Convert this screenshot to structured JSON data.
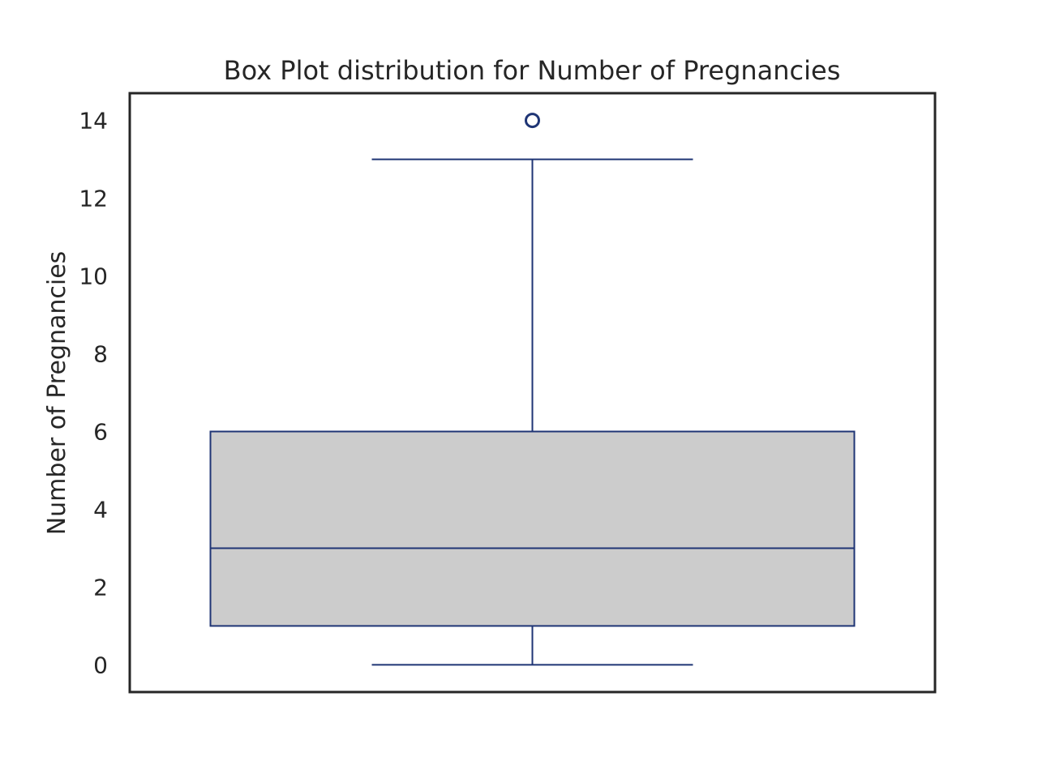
{
  "chart_data": {
    "type": "box",
    "title": "Box Plot distribution for Number of Pregnancies",
    "xlabel": "",
    "ylabel": "Number of Pregnancies",
    "ylim": [
      -0.7,
      14.7
    ],
    "yticks": [
      0,
      2,
      4,
      6,
      8,
      10,
      12,
      14
    ],
    "ytick_labels": [
      "0",
      "2",
      "4",
      "6",
      "8",
      "10",
      "12",
      "14"
    ],
    "grid": false,
    "box": {
      "whisker_low": 0,
      "q1": 1,
      "median": 3,
      "q3": 6,
      "whisker_high": 13,
      "outliers": [
        14
      ]
    },
    "colors": {
      "box_fill": "#cccccc",
      "box_edge": "#1f3575",
      "axes_frame": "#262626",
      "text": "#262626"
    }
  }
}
